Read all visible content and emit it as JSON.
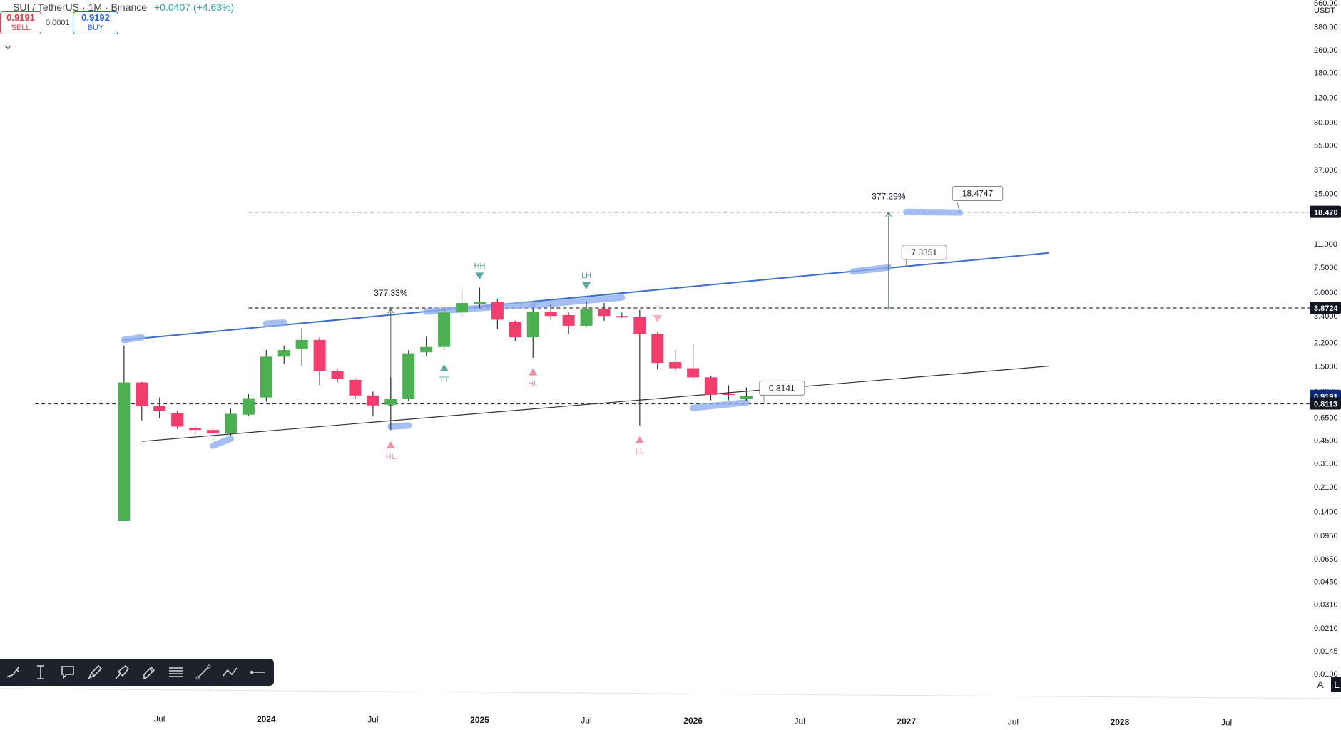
{
  "header": {
    "symbol_line": "SUI / TetherUS · 1M · Binance",
    "change": "+0.0407 (+4.63%)"
  },
  "trade": {
    "sell_price": "0.9191",
    "sell_label": "SELL",
    "spread": "0.0001",
    "buy_price": "0.9192",
    "buy_label": "BUY"
  },
  "collapse_icon": "chevron-down-icon",
  "colors": {
    "up": "#4caf50",
    "down": "#f23d6d",
    "trendline": "#3d6ec9",
    "highlight": "#8fb0f2",
    "label_up": "#5aa8a0",
    "label_down": "#f28fa0"
  },
  "price_axis": {
    "currency": "USDT",
    "ticks": [
      "560.00",
      "380.00",
      "260.00",
      "180.00",
      "120.00",
      "80.000",
      "55.000",
      "37.000",
      "25.000",
      "11.000",
      "7.5000",
      "5.0000",
      "3.4000",
      "2.2000",
      "1.5000",
      "1.0000",
      "0.6500",
      "0.4500",
      "0.3100",
      "0.2100",
      "0.1400",
      "0.0950",
      "0.0650",
      "0.0450",
      "0.0310",
      "0.0210",
      "0.0145",
      "0.0100"
    ],
    "current_price": "0.9191",
    "markers": [
      {
        "value": "18.470",
        "style": "dark"
      },
      {
        "value": "3.8724",
        "style": "dark"
      },
      {
        "value": "0.9191",
        "style": "current"
      },
      {
        "value": "0.8113",
        "style": "dark"
      }
    ],
    "auto_label": "A",
    "log_label": "L"
  },
  "time_axis": {
    "ticks": [
      {
        "label": "Jul",
        "x": "2023-07",
        "bold": false
      },
      {
        "label": "2024",
        "x": "2024-01",
        "bold": true
      },
      {
        "label": "Jul",
        "x": "2024-07",
        "bold": false
      },
      {
        "label": "2025",
        "x": "2025-01",
        "bold": true
      },
      {
        "label": "Jul",
        "x": "2025-07",
        "bold": false
      },
      {
        "label": "2026",
        "x": "2026-01",
        "bold": true
      },
      {
        "label": "Jul",
        "x": "2026-07",
        "bold": false
      },
      {
        "label": "2027",
        "x": "2027-01",
        "bold": true
      },
      {
        "label": "Jul",
        "x": "2027-07",
        "bold": false
      },
      {
        "label": "2028",
        "x": "2028-01",
        "bold": true
      },
      {
        "label": "Jul",
        "x": "2028-07",
        "bold": false
      }
    ]
  },
  "chart_data": {
    "type": "candlestick",
    "y_scale": "log",
    "ylim": [
      0.0092,
      560
    ],
    "xlim": [
      "2023-03",
      "2028-07"
    ],
    "candles": [
      {
        "x": "2023-05",
        "o": 0.12,
        "h": 2.1,
        "l": 0.12,
        "c": 1.15
      },
      {
        "x": "2023-06",
        "o": 1.15,
        "h": 1.16,
        "l": 0.62,
        "c": 0.78
      },
      {
        "x": "2023-07",
        "o": 0.78,
        "h": 0.9,
        "l": 0.64,
        "c": 0.72
      },
      {
        "x": "2023-08",
        "o": 0.7,
        "h": 0.72,
        "l": 0.54,
        "c": 0.56
      },
      {
        "x": "2023-09",
        "o": 0.55,
        "h": 0.57,
        "l": 0.49,
        "c": 0.53
      },
      {
        "x": "2023-10",
        "o": 0.53,
        "h": 0.56,
        "l": 0.44,
        "c": 0.5
      },
      {
        "x": "2023-11",
        "o": 0.5,
        "h": 0.75,
        "l": 0.48,
        "c": 0.69
      },
      {
        "x": "2023-12",
        "o": 0.68,
        "h": 0.95,
        "l": 0.66,
        "c": 0.89
      },
      {
        "x": "2024-01",
        "o": 0.9,
        "h": 1.95,
        "l": 0.84,
        "c": 1.75
      },
      {
        "x": "2024-02",
        "o": 1.75,
        "h": 2.1,
        "l": 1.55,
        "c": 1.95
      },
      {
        "x": "2024-03",
        "o": 2.0,
        "h": 2.8,
        "l": 1.5,
        "c": 2.3
      },
      {
        "x": "2024-04",
        "o": 2.3,
        "h": 2.4,
        "l": 1.1,
        "c": 1.38
      },
      {
        "x": "2024-05",
        "o": 1.38,
        "h": 1.43,
        "l": 1.15,
        "c": 1.22
      },
      {
        "x": "2024-06",
        "o": 1.2,
        "h": 1.23,
        "l": 0.88,
        "c": 0.93
      },
      {
        "x": "2024-07",
        "o": 0.93,
        "h": 0.99,
        "l": 0.66,
        "c": 0.79
      },
      {
        "x": "2024-08",
        "o": 0.8,
        "h": 1.25,
        "l": 0.53,
        "c": 0.88
      },
      {
        "x": "2024-09",
        "o": 0.88,
        "h": 1.95,
        "l": 0.85,
        "c": 1.85
      },
      {
        "x": "2024-10",
        "o": 1.88,
        "h": 2.42,
        "l": 1.78,
        "c": 2.05
      },
      {
        "x": "2024-11",
        "o": 2.05,
        "h": 3.95,
        "l": 1.95,
        "c": 3.6
      },
      {
        "x": "2024-12",
        "o": 3.6,
        "h": 5.3,
        "l": 3.4,
        "c": 4.2
      },
      {
        "x": "2025-01",
        "o": 4.2,
        "h": 5.4,
        "l": 3.85,
        "c": 4.25
      },
      {
        "x": "2025-02",
        "o": 4.25,
        "h": 4.45,
        "l": 2.75,
        "c": 3.2
      },
      {
        "x": "2025-03",
        "o": 3.1,
        "h": 3.15,
        "l": 2.25,
        "c": 2.4
      },
      {
        "x": "2025-04",
        "o": 2.4,
        "h": 3.9,
        "l": 1.72,
        "c": 3.65
      },
      {
        "x": "2025-05",
        "o": 3.65,
        "h": 4.1,
        "l": 3.2,
        "c": 3.4
      },
      {
        "x": "2025-06",
        "o": 3.45,
        "h": 3.6,
        "l": 2.55,
        "c": 2.9
      },
      {
        "x": "2025-07",
        "o": 2.9,
        "h": 4.3,
        "l": 2.85,
        "c": 3.8
      },
      {
        "x": "2025-08",
        "o": 3.8,
        "h": 4.2,
        "l": 3.15,
        "c": 3.4
      },
      {
        "x": "2025-09",
        "o": 3.4,
        "h": 3.6,
        "l": 3.3,
        "c": 3.35
      },
      {
        "x": "2025-10",
        "o": 3.35,
        "h": 3.75,
        "l": 0.57,
        "c": 2.55
      },
      {
        "x": "2025-11",
        "o": 2.55,
        "h": 2.6,
        "l": 1.42,
        "c": 1.58
      },
      {
        "x": "2025-12",
        "o": 1.6,
        "h": 1.95,
        "l": 1.38,
        "c": 1.45
      },
      {
        "x": "2026-01",
        "o": 1.45,
        "h": 2.15,
        "l": 1.2,
        "c": 1.25
      },
      {
        "x": "2026-02",
        "o": 1.25,
        "h": 1.28,
        "l": 0.86,
        "c": 0.94
      },
      {
        "x": "2026-03",
        "o": 0.96,
        "h": 1.1,
        "l": 0.86,
        "c": 0.95
      },
      {
        "x": "2026-04",
        "o": 0.8784,
        "h": 1.06,
        "l": 0.85,
        "c": 0.9191
      }
    ],
    "trendlines": [
      {
        "name": "upper-channel",
        "color": "#3d6ec9",
        "width": 2,
        "x1": "2023-05",
        "y1": 2.3,
        "x2": "2027-09",
        "y2": 9.5
      },
      {
        "name": "lower-channel",
        "color": "#333333",
        "width": 1.2,
        "x1": "2023-06",
        "y1": 0.44,
        "x2": "2027-09",
        "y2": 1.5
      }
    ],
    "horizontal_levels": [
      {
        "y": 18.47,
        "x_from": "2023-12"
      },
      {
        "y": 3.8724,
        "x_from": "2023-12"
      },
      {
        "y": 0.8113,
        "x_from": "2022-12"
      }
    ],
    "highlights": [
      {
        "x1": "2023-05",
        "y1": 2.3,
        "x2": "2023-06",
        "y2": 2.4
      },
      {
        "x1": "2024-01",
        "y1": 3.0,
        "x2": "2024-02",
        "y2": 3.05
      },
      {
        "x1": "2024-10",
        "y1": 3.65,
        "x2": "2025-04",
        "y2": 4.1
      },
      {
        "x1": "2025-04",
        "y1": 4.05,
        "x2": "2025-09",
        "y2": 4.6
      },
      {
        "x1": "2023-10",
        "y1": 0.41,
        "x2": "2023-11",
        "y2": 0.46
      },
      {
        "x1": "2024-08",
        "y1": 0.56,
        "x2": "2024-09",
        "y2": 0.57
      },
      {
        "x1": "2026-01",
        "y1": 0.76,
        "x2": "2026-04",
        "y2": 0.83
      },
      {
        "x1": "2026-10",
        "y1": 7.0,
        "x2": "2026-12",
        "y2": 7.5
      },
      {
        "x1": "2027-01",
        "y1": 18.55,
        "x2": "2027-04",
        "y2": 18.35
      }
    ],
    "pivot_labels": [
      {
        "text": "HH",
        "x": "2025-01",
        "y": 6.9,
        "dir": "down"
      },
      {
        "text": "LH",
        "x": "2025-07",
        "y": 5.9,
        "dir": "down"
      },
      {
        "text": "TT",
        "x": "2024-11",
        "y": 1.55,
        "dir": "up"
      },
      {
        "text": "HL",
        "x": "2025-04",
        "y": 1.45,
        "dir": "up"
      },
      {
        "text": "HL",
        "x": "2024-08",
        "y": 0.44,
        "dir": "up"
      },
      {
        "text": "LL",
        "x": "2025-10",
        "y": 0.48,
        "dir": "up"
      },
      {
        "text": "??",
        "x": "2025-11",
        "y": 3.45,
        "dir": "down"
      }
    ],
    "price_labels": [
      {
        "text": "18.4747",
        "x": "2027-05",
        "y": 25.0,
        "anchor_x": "2027-04",
        "anchor_y": 18.47
      },
      {
        "text": "7.3351",
        "x": "2027-02",
        "y": 9.6,
        "anchor_x": "2027-01",
        "anchor_y": 7.5
      },
      {
        "text": "0.8141",
        "x": "2026-06",
        "y": 1.05,
        "anchor_x": "2026-05",
        "anchor_y": 0.83
      }
    ],
    "measures": [
      {
        "text": "377.33%",
        "x": "2024-08",
        "y_from": 0.79,
        "y_to": 3.82
      },
      {
        "text": "377.29%",
        "x": "2026-12",
        "y_from": 3.8724,
        "y_to": 18.47
      }
    ]
  },
  "toolbar": {
    "tools": [
      {
        "name": "brush-tool-icon"
      },
      {
        "name": "text-cursor-tool-icon"
      },
      {
        "name": "callout-tool-icon"
      },
      {
        "name": "pen-tool-icon"
      },
      {
        "name": "highlighter-tool-icon"
      },
      {
        "name": "marker-tool-icon"
      },
      {
        "name": "horizontal-lines-tool-icon"
      },
      {
        "name": "trend-line-tool-icon"
      },
      {
        "name": "path-tool-icon"
      },
      {
        "name": "horizontal-ray-tool-icon"
      }
    ]
  }
}
